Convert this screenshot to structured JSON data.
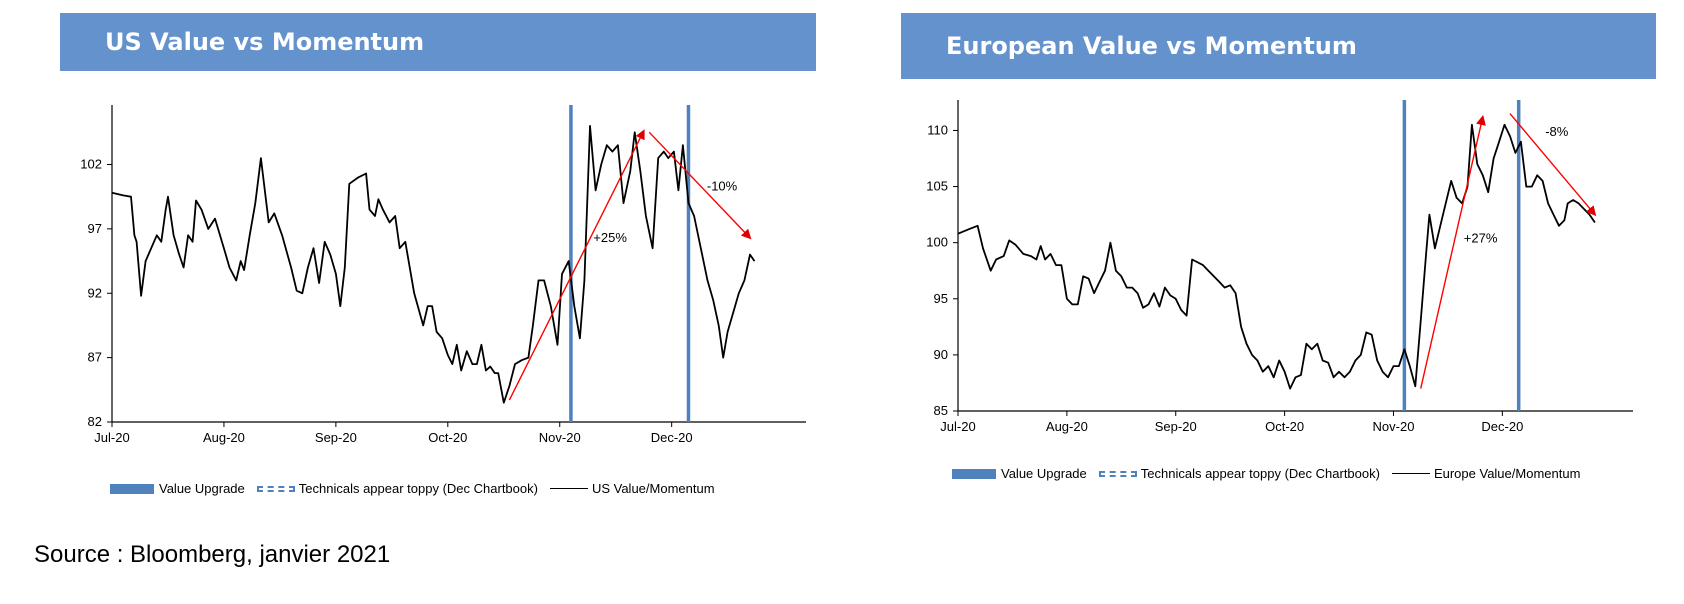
{
  "source": "Source : Bloomberg, janvier 2021",
  "chart_data": [
    {
      "type": "line",
      "title": "US Value vs Momentum",
      "x_ticks": [
        "Jul-20",
        "Aug-20",
        "Sep-20",
        "Oct-20",
        "Nov-20",
        "Dec-20"
      ],
      "y_ticks": [
        82,
        87,
        92,
        97,
        102
      ],
      "ylim": [
        82,
        106
      ],
      "x_domain": [
        0,
        6.2
      ],
      "series": [
        {
          "name": "US Value/Momentum",
          "color": "#000000",
          "points": [
            [
              0.0,
              99.8
            ],
            [
              0.1,
              99.6
            ],
            [
              0.17,
              99.5
            ],
            [
              0.2,
              96.5
            ],
            [
              0.22,
              96.0
            ],
            [
              0.26,
              91.8
            ],
            [
              0.3,
              94.5
            ],
            [
              0.35,
              95.5
            ],
            [
              0.4,
              96.5
            ],
            [
              0.44,
              96.0
            ],
            [
              0.48,
              98.5
            ],
            [
              0.5,
              99.5
            ],
            [
              0.55,
              96.5
            ],
            [
              0.6,
              95.0
            ],
            [
              0.64,
              94.0
            ],
            [
              0.68,
              96.5
            ],
            [
              0.72,
              96.0
            ],
            [
              0.75,
              99.2
            ],
            [
              0.8,
              98.5
            ],
            [
              0.86,
              97.0
            ],
            [
              0.92,
              97.8
            ],
            [
              1.0,
              95.5
            ],
            [
              1.05,
              94.0
            ],
            [
              1.11,
              93.0
            ],
            [
              1.15,
              94.5
            ],
            [
              1.18,
              93.8
            ],
            [
              1.23,
              96.5
            ],
            [
              1.28,
              99.0
            ],
            [
              1.33,
              102.5
            ],
            [
              1.4,
              97.5
            ],
            [
              1.45,
              98.2
            ],
            [
              1.52,
              96.5
            ],
            [
              1.6,
              94.0
            ],
            [
              1.65,
              92.2
            ],
            [
              1.7,
              92.0
            ],
            [
              1.75,
              94.0
            ],
            [
              1.8,
              95.5
            ],
            [
              1.85,
              92.8
            ],
            [
              1.9,
              96.0
            ],
            [
              1.95,
              95.0
            ],
            [
              2.0,
              93.5
            ],
            [
              2.04,
              91.0
            ],
            [
              2.08,
              94.0
            ],
            [
              2.12,
              100.5
            ],
            [
              2.2,
              101.0
            ],
            [
              2.27,
              101.3
            ],
            [
              2.3,
              98.5
            ],
            [
              2.35,
              98.0
            ],
            [
              2.38,
              99.3
            ],
            [
              2.42,
              98.5
            ],
            [
              2.48,
              97.5
            ],
            [
              2.53,
              98.0
            ],
            [
              2.57,
              95.5
            ],
            [
              2.62,
              96.0
            ],
            [
              2.7,
              92.0
            ],
            [
              2.78,
              89.5
            ],
            [
              2.82,
              91.0
            ],
            [
              2.86,
              91.0
            ],
            [
              2.9,
              89.0
            ],
            [
              2.95,
              88.5
            ],
            [
              3.0,
              87.2
            ],
            [
              3.04,
              86.5
            ],
            [
              3.08,
              88.0
            ],
            [
              3.12,
              86.0
            ],
            [
              3.17,
              87.5
            ],
            [
              3.22,
              86.5
            ],
            [
              3.26,
              86.5
            ],
            [
              3.3,
              88.0
            ],
            [
              3.34,
              86.0
            ],
            [
              3.38,
              86.3
            ],
            [
              3.42,
              85.8
            ],
            [
              3.45,
              85.8
            ],
            [
              3.5,
              83.5
            ],
            [
              3.55,
              84.8
            ],
            [
              3.6,
              86.5
            ],
            [
              3.66,
              86.8
            ],
            [
              3.72,
              87.0
            ],
            [
              3.76,
              89.5
            ],
            [
              3.81,
              93.0
            ],
            [
              3.86,
              93.0
            ],
            [
              3.92,
              91.0
            ],
            [
              3.98,
              88.0
            ],
            [
              4.02,
              93.5
            ],
            [
              4.08,
              94.5
            ],
            [
              4.13,
              91.0
            ],
            [
              4.18,
              88.5
            ],
            [
              4.22,
              93.0
            ],
            [
              4.27,
              105.0
            ],
            [
              4.32,
              100.0
            ],
            [
              4.37,
              102.0
            ],
            [
              4.42,
              103.5
            ],
            [
              4.47,
              103.0
            ],
            [
              4.52,
              103.5
            ],
            [
              4.57,
              99.0
            ],
            [
              4.63,
              101.5
            ],
            [
              4.67,
              104.5
            ],
            [
              4.72,
              101.5
            ],
            [
              4.77,
              98.0
            ],
            [
              4.83,
              95.5
            ],
            [
              4.88,
              102.5
            ],
            [
              4.93,
              103.0
            ],
            [
              4.97,
              102.5
            ],
            [
              5.02,
              103.0
            ],
            [
              5.06,
              100.0
            ],
            [
              5.1,
              103.5
            ],
            [
              5.15,
              99.0
            ],
            [
              5.2,
              98.0
            ],
            [
              5.26,
              95.5
            ],
            [
              5.32,
              93.0
            ],
            [
              5.37,
              91.5
            ],
            [
              5.42,
              89.5
            ],
            [
              5.46,
              87.0
            ],
            [
              5.5,
              89.0
            ],
            [
              5.55,
              90.5
            ],
            [
              5.6,
              92.0
            ],
            [
              5.65,
              93.0
            ],
            [
              5.7,
              95.0
            ],
            [
              5.74,
              94.5
            ]
          ]
        }
      ],
      "vertical_lines": [
        {
          "label": "Value Upgrade",
          "x": 4.1,
          "color": "#4f81bd"
        },
        {
          "label": "Value Upgrade",
          "x": 5.15,
          "color": "#4f81bd"
        }
      ],
      "annotations": [
        {
          "text": "+25%",
          "x": 4.45,
          "y": 96.0
        },
        {
          "text": "-10%",
          "x": 5.45,
          "y": 100.0
        }
      ],
      "arrows": [
        {
          "from": [
            3.55,
            83.7
          ],
          "to": [
            4.75,
            104.6
          ],
          "color": "#ff0000"
        },
        {
          "from": [
            4.8,
            104.5
          ],
          "to": [
            5.7,
            96.3
          ],
          "color": "#ff0000"
        }
      ],
      "legend": {
        "position": "bottom",
        "entries": [
          "Value Upgrade",
          "Technicals appear toppy (Dec Chartbook)",
          "US Value/Momentum"
        ]
      }
    },
    {
      "type": "line",
      "title": "European Value vs Momentum",
      "x_ticks": [
        "Jul-20",
        "Aug-20",
        "Sep-20",
        "Oct-20",
        "Nov-20",
        "Dec-20"
      ],
      "y_ticks": [
        85,
        90,
        95,
        100,
        105,
        110
      ],
      "ylim": [
        85,
        112
      ],
      "x_domain": [
        0,
        6.2
      ],
      "series": [
        {
          "name": "Europe Value/Momentum",
          "color": "#000000",
          "points": [
            [
              0.0,
              100.8
            ],
            [
              0.1,
              101.2
            ],
            [
              0.18,
              101.5
            ],
            [
              0.23,
              99.5
            ],
            [
              0.3,
              97.5
            ],
            [
              0.35,
              98.5
            ],
            [
              0.42,
              98.8
            ],
            [
              0.47,
              100.2
            ],
            [
              0.53,
              99.8
            ],
            [
              0.6,
              99.0
            ],
            [
              0.67,
              98.8
            ],
            [
              0.72,
              98.5
            ],
            [
              0.76,
              99.7
            ],
            [
              0.8,
              98.5
            ],
            [
              0.85,
              99.0
            ],
            [
              0.9,
              98.0
            ],
            [
              0.95,
              98.0
            ],
            [
              1.0,
              95.0
            ],
            [
              1.05,
              94.5
            ],
            [
              1.1,
              94.5
            ],
            [
              1.15,
              97.0
            ],
            [
              1.2,
              96.8
            ],
            [
              1.25,
              95.5
            ],
            [
              1.3,
              96.5
            ],
            [
              1.35,
              97.5
            ],
            [
              1.4,
              100.0
            ],
            [
              1.45,
              97.5
            ],
            [
              1.5,
              97.0
            ],
            [
              1.55,
              96.0
            ],
            [
              1.6,
              96.0
            ],
            [
              1.65,
              95.5
            ],
            [
              1.7,
              94.2
            ],
            [
              1.75,
              94.5
            ],
            [
              1.8,
              95.5
            ],
            [
              1.85,
              94.3
            ],
            [
              1.9,
              96.0
            ],
            [
              1.95,
              95.3
            ],
            [
              2.0,
              95.0
            ],
            [
              2.05,
              94.0
            ],
            [
              2.1,
              93.5
            ],
            [
              2.15,
              98.5
            ],
            [
              2.25,
              98.0
            ],
            [
              2.3,
              97.5
            ],
            [
              2.35,
              97.0
            ],
            [
              2.4,
              96.5
            ],
            [
              2.45,
              96.0
            ],
            [
              2.5,
              96.2
            ],
            [
              2.55,
              95.5
            ],
            [
              2.6,
              92.5
            ],
            [
              2.65,
              91.0
            ],
            [
              2.7,
              90.0
            ],
            [
              2.75,
              89.5
            ],
            [
              2.8,
              88.5
            ],
            [
              2.85,
              89.0
            ],
            [
              2.9,
              88.0
            ],
            [
              2.95,
              89.5
            ],
            [
              3.0,
              88.5
            ],
            [
              3.05,
              87.0
            ],
            [
              3.1,
              88.0
            ],
            [
              3.15,
              88.2
            ],
            [
              3.2,
              91.0
            ],
            [
              3.25,
              90.5
            ],
            [
              3.3,
              91.0
            ],
            [
              3.35,
              89.5
            ],
            [
              3.4,
              89.3
            ],
            [
              3.45,
              88.0
            ],
            [
              3.5,
              88.5
            ],
            [
              3.55,
              88.0
            ],
            [
              3.6,
              88.5
            ],
            [
              3.65,
              89.5
            ],
            [
              3.7,
              90.0
            ],
            [
              3.75,
              92.0
            ],
            [
              3.8,
              91.8
            ],
            [
              3.85,
              89.5
            ],
            [
              3.9,
              88.5
            ],
            [
              3.95,
              88.0
            ],
            [
              4.0,
              89.0
            ],
            [
              4.05,
              89.0
            ],
            [
              4.1,
              90.5
            ],
            [
              4.15,
              89.0
            ],
            [
              4.2,
              87.2
            ],
            [
              4.25,
              93.0
            ],
            [
              4.3,
              99.0
            ],
            [
              4.33,
              102.5
            ],
            [
              4.38,
              99.5
            ],
            [
              4.43,
              101.5
            ],
            [
              4.48,
              103.5
            ],
            [
              4.53,
              105.5
            ],
            [
              4.58,
              104.0
            ],
            [
              4.63,
              103.5
            ],
            [
              4.68,
              105.0
            ],
            [
              4.72,
              110.5
            ],
            [
              4.77,
              107.0
            ],
            [
              4.82,
              106.0
            ],
            [
              4.87,
              104.5
            ],
            [
              4.92,
              107.5
            ],
            [
              4.97,
              109.0
            ],
            [
              5.02,
              110.5
            ],
            [
              5.07,
              109.5
            ],
            [
              5.12,
              108.0
            ],
            [
              5.17,
              109.0
            ],
            [
              5.22,
              105.0
            ],
            [
              5.27,
              105.0
            ],
            [
              5.32,
              106.0
            ],
            [
              5.37,
              105.5
            ],
            [
              5.42,
              103.5
            ],
            [
              5.47,
              102.5
            ],
            [
              5.52,
              101.5
            ],
            [
              5.57,
              102.0
            ],
            [
              5.6,
              103.5
            ],
            [
              5.65,
              103.8
            ],
            [
              5.7,
              103.5
            ],
            [
              5.75,
              103.0
            ],
            [
              5.8,
              102.5
            ],
            [
              5.85,
              101.8
            ]
          ]
        }
      ],
      "vertical_lines": [
        {
          "label": "Value Upgrade",
          "x": 4.1,
          "color": "#4f81bd"
        },
        {
          "label": "Value Upgrade",
          "x": 5.15,
          "color": "#4f81bd"
        }
      ],
      "annotations": [
        {
          "text": "+27%",
          "x": 4.8,
          "y": 100.0
        },
        {
          "text": "-8%",
          "x": 5.5,
          "y": 109.5
        }
      ],
      "arrows": [
        {
          "from": [
            4.25,
            87.0
          ],
          "to": [
            4.82,
            111.2
          ],
          "color": "#ff0000"
        },
        {
          "from": [
            5.07,
            111.5
          ],
          "to": [
            5.85,
            102.5
          ],
          "color": "#ff0000"
        }
      ],
      "legend": {
        "position": "bottom",
        "entries": [
          "Value Upgrade",
          "Technicals appear toppy (Dec Chartbook)",
          "Europe Value/Momentum"
        ]
      }
    }
  ]
}
